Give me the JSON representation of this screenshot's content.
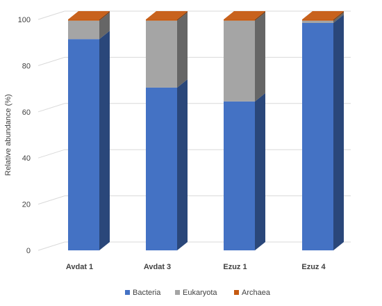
{
  "chart_data": {
    "type": "bar",
    "stacked": true,
    "style": "3d",
    "categories": [
      "Avdat 1",
      "Avdat 3",
      "Ezuz 1",
      "Ezuz 4"
    ],
    "series": [
      {
        "name": "Bacteria",
        "color": "#4472c4",
        "values": [
          91.5,
          70.5,
          64.5,
          98.5
        ]
      },
      {
        "name": "Eukaryota",
        "color": "#a5a5a5",
        "values": [
          8.0,
          29.0,
          35.0,
          1.0
        ]
      },
      {
        "name": "Archaea",
        "color": "#c55a11",
        "values": [
          0.5,
          0.5,
          0.5,
          0.5
        ]
      }
    ],
    "ylabel": "Relative abundance (%)",
    "ylim": [
      0,
      100
    ],
    "yticks": [
      0,
      20,
      40,
      60,
      80,
      100
    ],
    "grid": true,
    "legend_position": "bottom"
  }
}
